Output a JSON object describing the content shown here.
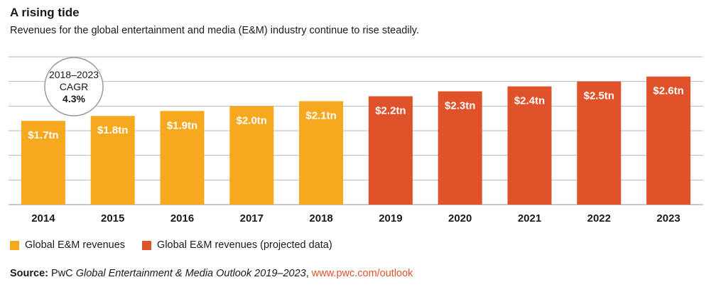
{
  "header": {
    "title": "A rising tide",
    "subtitle": "Revenues for the global entertainment and media (E&M) industry continue to rise steadily."
  },
  "cagr_badge": {
    "period": "2018–2023",
    "label": "CAGR",
    "value": "4.3%"
  },
  "legend": {
    "actual_label": "Global E&M revenues",
    "projected_label": "Global E&M revenues (projected data)"
  },
  "source": {
    "prefix": "Source:",
    "publisher": "PwC",
    "publication": "Global Entertainment & Media Outlook 2019–2023",
    "separator": ",",
    "url": "www.pwc.com/outlook"
  },
  "colors": {
    "actual": "#f6a81e",
    "projected": "#e0532a",
    "grid": "#b8b8b8",
    "badge_border": "#9a9a9a"
  },
  "chart_data": {
    "type": "bar",
    "title": "A rising tide",
    "xlabel": "",
    "ylabel": "",
    "ylim": [
      0,
      3.0
    ],
    "grid": true,
    "categories": [
      "2014",
      "2015",
      "2016",
      "2017",
      "2018",
      "2019",
      "2020",
      "2021",
      "2022",
      "2023"
    ],
    "values": [
      1.7,
      1.8,
      1.9,
      2.0,
      2.1,
      2.2,
      2.3,
      2.4,
      2.5,
      2.6
    ],
    "labels": [
      "$1.7tn",
      "$1.8tn",
      "$1.9tn",
      "$2.0tn",
      "$2.1tn",
      "$2.2tn",
      "$2.3tn",
      "$2.4tn",
      "$2.5tn",
      "$2.6tn"
    ],
    "projected": [
      false,
      false,
      false,
      false,
      false,
      true,
      true,
      true,
      true,
      true
    ],
    "series": [
      {
        "name": "Global E&M revenues",
        "years": [
          "2014",
          "2015",
          "2016",
          "2017",
          "2018"
        ]
      },
      {
        "name": "Global E&M revenues (projected data)",
        "years": [
          "2019",
          "2020",
          "2021",
          "2022",
          "2023"
        ]
      }
    ],
    "legend_position": "bottom-left"
  }
}
